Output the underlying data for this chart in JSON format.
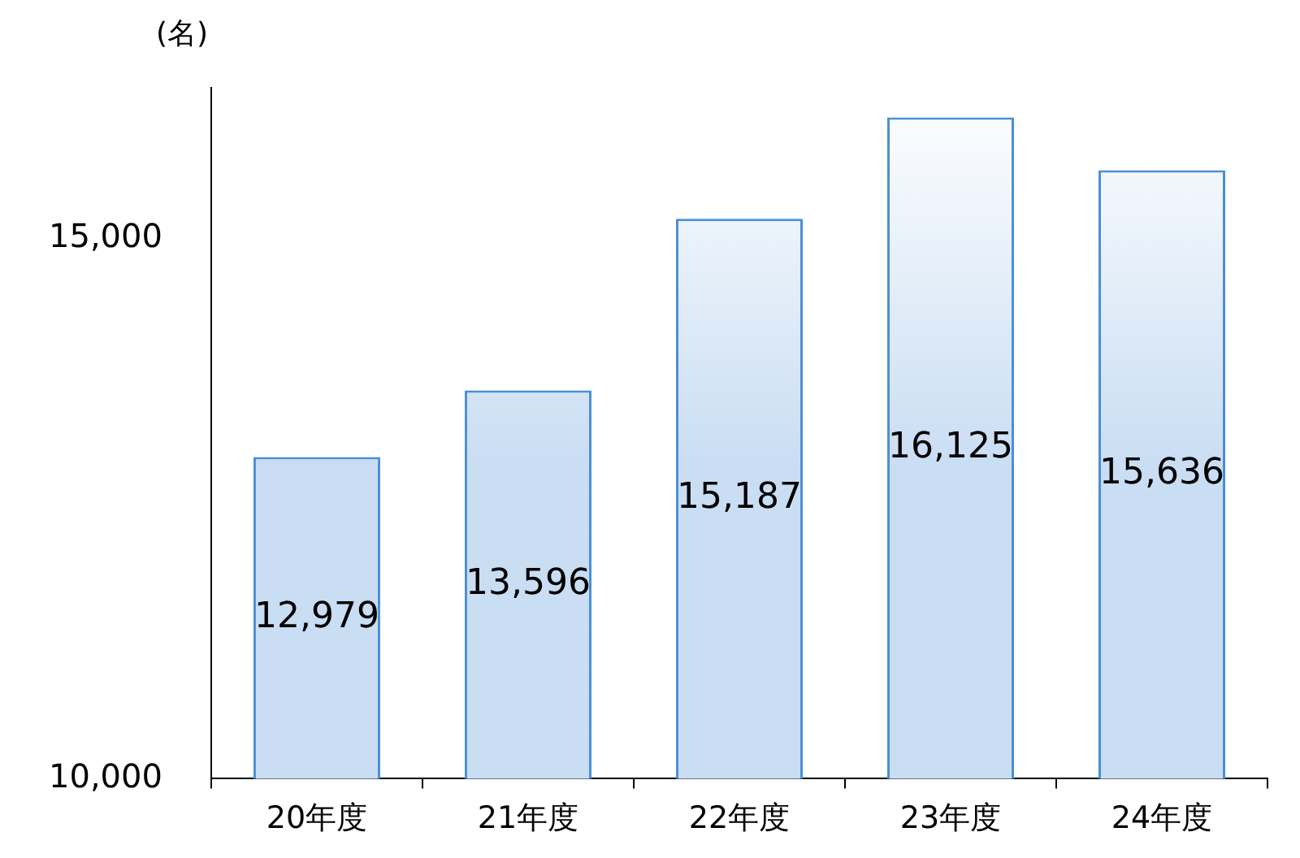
{
  "chart_data": {
    "type": "bar",
    "ylabel": "(名)",
    "categories": [
      "20年度",
      "21年度",
      "22年度",
      "23年度",
      "24年度"
    ],
    "values": [
      12979,
      13596,
      15187,
      16125,
      15636
    ],
    "value_labels": [
      "12,979",
      "13,596",
      "15,187",
      "16,125",
      "15,636"
    ],
    "color": "#4a8fd8",
    "ylim": [
      10000,
      16400
    ],
    "yticks": [
      {
        "value": 10000,
        "label": "10,000"
      },
      {
        "value": 15000,
        "label": "15,000"
      }
    ],
    "grid": false,
    "legend": false
  }
}
